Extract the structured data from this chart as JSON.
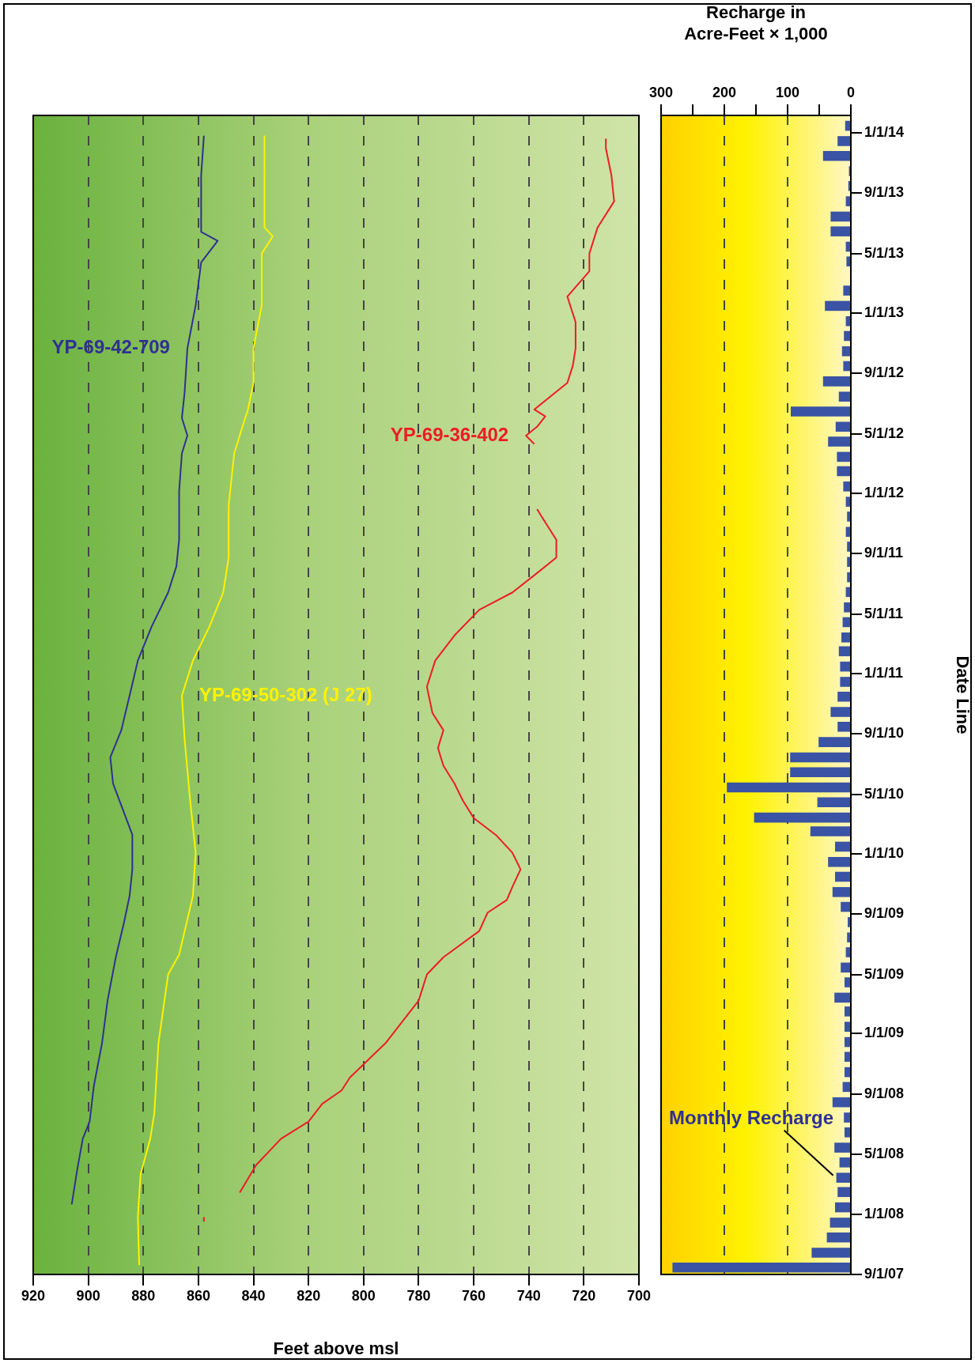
{
  "chart_data": [
    {
      "type": "line",
      "orientation": "horizontal",
      "xlabel": "Feet above msl",
      "xlim": [
        920,
        700
      ],
      "xticks": [
        920,
        900,
        880,
        860,
        840,
        820,
        800,
        780,
        760,
        740,
        720,
        700
      ],
      "ylim": [
        "2007-09-01",
        "2014-02-05"
      ],
      "grid": "x",
      "marker": "none",
      "tick_labels": "x",
      "series": [
        {
          "name": "YP-69-42-709",
          "color": "#2e3192",
          "x": [
            "2008-01-21",
            "2008-04-01",
            "2008-06-02",
            "2008-07-07",
            "2008-09-16",
            "2008-12-13",
            "2009-03-09",
            "2009-06-05",
            "2009-08-15",
            "2009-10-07",
            "2009-11-30",
            "2010-02-08",
            "2010-05-23",
            "2010-07-15",
            "2010-09-08",
            "2010-11-17",
            "2011-01-27",
            "2011-04-06",
            "2011-06-14",
            "2011-08-06",
            "2011-09-29",
            "2012-01-06",
            "2012-03-22",
            "2012-04-27",
            "2012-06-02",
            "2012-07-24",
            "2012-10-21",
            "2013-01-16",
            "2013-04-13",
            "2013-05-27",
            "2013-06-14",
            "2013-07-28",
            "2013-10-07",
            "2013-12-26"
          ],
          "values": [
            906,
            904,
            902,
            899.5,
            898,
            895,
            893,
            890,
            887,
            885,
            884,
            884,
            891,
            892,
            888,
            885,
            882,
            877,
            871,
            868,
            867,
            867,
            866,
            864,
            866,
            865,
            864,
            861,
            859,
            853,
            859,
            859,
            859,
            858
          ]
        },
        {
          "name": "YP-69-50-302 (J 27)",
          "color": "#fff200",
          "x": [
            "2007-09-20",
            "2007-12-26",
            "2008-03-22",
            "2008-06-02",
            "2008-07-24",
            "2008-12-13",
            "2009-05-01",
            "2009-06-10",
            "2009-10-07",
            "2010-01-03",
            "2010-04-19",
            "2010-08-20",
            "2010-11-17",
            "2011-01-27",
            "2011-04-06",
            "2011-06-14",
            "2011-08-24",
            "2011-12-08",
            "2012-03-22",
            "2012-05-15",
            "2012-06-19",
            "2012-08-12",
            "2012-10-21",
            "2013-01-16",
            "2013-05-01",
            "2013-06-05",
            "2013-06-23",
            "2013-10-07",
            "2013-12-26"
          ],
          "values": [
            881.5,
            882,
            881,
            877.5,
            876,
            874.5,
            871,
            867,
            862,
            861,
            863,
            865,
            866,
            862,
            856,
            851,
            849,
            849,
            847,
            844,
            842,
            840,
            840,
            837,
            837,
            833,
            836,
            836,
            836
          ]
        },
        {
          "name": "YP-69-36-402",
          "color": "#ed1c24",
          "x": [
            "2007-12-17",
            "2007-12-26",
            "2008-01-01",
            "2008-02-14",
            "2008-04-10",
            "2008-06-02",
            "2008-07-07",
            "2008-08-12",
            "2008-09-08",
            "2008-10-04",
            "2008-12-13",
            "2009-03-09",
            "2009-05-01",
            "2009-06-05",
            "2009-07-28",
            "2009-09-03",
            "2009-09-29",
            "2009-10-25",
            "2009-11-30",
            "2010-01-03",
            "2010-02-08",
            "2010-03-14",
            "2010-04-19",
            "2010-05-23",
            "2010-06-28",
            "2010-08-03",
            "2010-09-08",
            "2010-10-13",
            "2010-12-05",
            "2011-01-27",
            "2011-03-19",
            "2011-05-10",
            "2011-06-14",
            "2011-07-19",
            "2011-08-24",
            "2011-09-29",
            "2011-11-12",
            "2011-11-30",
            "2012-01-01",
            "2012-04-10",
            "2012-04-27",
            "2012-05-15",
            "2012-06-05",
            "2012-06-19",
            "2012-08-12",
            "2012-09-16",
            "2012-10-21",
            "2012-12-13",
            "2013-02-03",
            "2013-03-26",
            "2013-05-01",
            "2013-06-23",
            "2013-08-15",
            "2013-10-07",
            "2013-11-30",
            "2013-12-20"
          ],
          "values": [
            858,
            858,
            null,
            845,
            839,
            830,
            820,
            815,
            808,
            805,
            792,
            780,
            777,
            771,
            758,
            755,
            748,
            746,
            743,
            746,
            752,
            760,
            764,
            767,
            771,
            773,
            771,
            775,
            777,
            774,
            767,
            758,
            746,
            738,
            730,
            730,
            735,
            737,
            null,
            738,
            741,
            737,
            734,
            738,
            726,
            724,
            723,
            723,
            726,
            718,
            718,
            715,
            709,
            710,
            712,
            712
          ]
        }
      ]
    },
    {
      "type": "bar",
      "orientation": "horizontal",
      "xlabel": "Recharge in\nAcre-Feet × 1,000",
      "xlim": [
        300,
        0
      ],
      "xticks": [
        300,
        {
          "value": 250,
          "label": null
        },
        200,
        {
          "value": 150,
          "label": null
        },
        100,
        {
          "value": 50,
          "label": null
        },
        0
      ],
      "ylabel": "Date Line",
      "ylim": [
        "2007-09-01",
        "2014-02-05"
      ],
      "yticks": [
        {
          "value": "2007-09-01",
          "label": "9/1/07"
        },
        {
          "value": "2008-01-01",
          "label": "1/1/08"
        },
        {
          "value": "2008-05-01",
          "label": "5/1/08"
        },
        {
          "value": "2008-09-01",
          "label": "9/1/08"
        },
        {
          "value": "2009-01-01",
          "label": "1/1/09"
        },
        {
          "value": "2009-05-01",
          "label": "5/1/09"
        },
        {
          "value": "2009-09-01",
          "label": "9/1/09"
        },
        {
          "value": "2010-01-01",
          "label": "1/1/10"
        },
        {
          "value": "2010-05-01",
          "label": "5/1/10"
        },
        {
          "value": "2010-09-01",
          "label": "9/1/10"
        },
        {
          "value": "2011-01-01",
          "label": "1/1/11"
        },
        {
          "value": "2011-05-01",
          "label": "5/1/11"
        },
        {
          "value": "2011-09-01",
          "label": "9/1/11"
        },
        {
          "value": "2012-01-01",
          "label": "1/1/12"
        },
        {
          "value": "2012-05-01",
          "label": "5/1/12"
        },
        {
          "value": "2012-09-01",
          "label": "9/1/12"
        },
        {
          "value": "2013-01-01",
          "label": "1/1/13"
        },
        {
          "value": "2013-05-01",
          "label": "5/1/13"
        },
        {
          "value": "2013-09-01",
          "label": "9/1/13"
        },
        {
          "value": "2014-01-01",
          "label": "1/1/14"
        }
      ],
      "grid": "x",
      "annotations": [
        {
          "text": "Monthly Recharge",
          "x": 23,
          "y": "2008-03-15"
        }
      ],
      "series": [
        {
          "color": "#3a53a4",
          "x": [
            "2007-09-15",
            "2007-10-15",
            "2007-11-15",
            "2007-12-15",
            "2008-01-15",
            "2008-02-15",
            "2008-03-15",
            "2008-04-15",
            "2008-05-15",
            "2008-06-15",
            "2008-07-15",
            "2008-08-15",
            "2008-09-15",
            "2008-10-15",
            "2008-11-15",
            "2008-12-15",
            "2009-01-15",
            "2009-02-15",
            "2009-03-15",
            "2009-04-15",
            "2009-05-15",
            "2009-06-15",
            "2009-07-15",
            "2009-08-15",
            "2009-09-15",
            "2009-10-15",
            "2009-11-15",
            "2009-12-15",
            "2010-01-15",
            "2010-02-15",
            "2010-03-15",
            "2010-04-15",
            "2010-05-15",
            "2010-06-15",
            "2010-07-15",
            "2010-08-15",
            "2010-09-15",
            "2010-10-15",
            "2010-11-15",
            "2010-12-15",
            "2011-01-15",
            "2011-02-15",
            "2011-03-15",
            "2011-04-15",
            "2011-05-15",
            "2011-06-15",
            "2011-07-15",
            "2011-08-15",
            "2011-09-15",
            "2011-10-15",
            "2011-11-15",
            "2011-12-15",
            "2012-01-15",
            "2012-02-15",
            "2012-03-15",
            "2012-04-15",
            "2012-05-15",
            "2012-06-15",
            "2012-07-15",
            "2012-08-15",
            "2012-09-15",
            "2012-10-15",
            "2012-11-15",
            "2012-12-15",
            "2013-01-15",
            "2013-02-15",
            "2013-03-15",
            "2013-04-15",
            "2013-05-15",
            "2013-06-15",
            "2013-07-15",
            "2013-08-15",
            "2013-09-15",
            "2013-10-15",
            "2013-11-15",
            "2013-12-15",
            "2014-01-15"
          ],
          "values": [
            282,
            62,
            38,
            33,
            25,
            21,
            23,
            18,
            26,
            10,
            11,
            29,
            13,
            10,
            10,
            10,
            10,
            10,
            26,
            10,
            16,
            8,
            6,
            5,
            16,
            29,
            25,
            36,
            25,
            64,
            153,
            53,
            196,
            96,
            96,
            51,
            21,
            32,
            21,
            17,
            17,
            19,
            15,
            13,
            11,
            8,
            6,
            6,
            6,
            8,
            6,
            8,
            12,
            22,
            22,
            36,
            24,
            95,
            19,
            44,
            12,
            14,
            11,
            8,
            41,
            12,
            0,
            7,
            8,
            32,
            32,
            8,
            4,
            3,
            44,
            21,
            9
          ]
        }
      ]
    }
  ]
}
